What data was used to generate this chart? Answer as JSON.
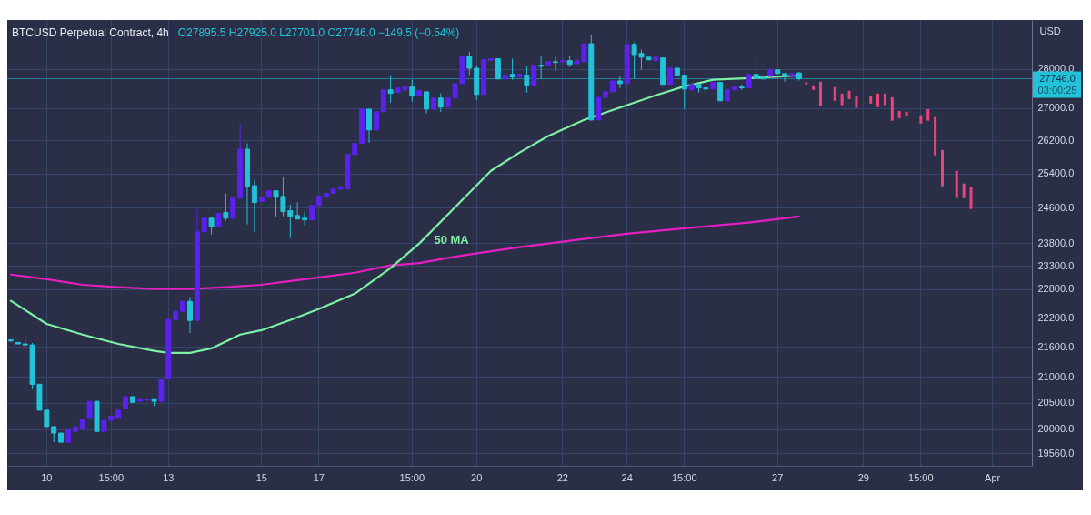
{
  "chart_data": {
    "type": "candlestick",
    "title": "BTCUSD Perpetual Contract, 4h",
    "subtitle": "O27895.5 H27925.0 L27701.0 C27746.0 −149.5 (−0.54%)",
    "ylabel": "USD",
    "log": true,
    "grid": true,
    "ylim": [
      19330,
      29310
    ],
    "yticks": [
      {
        "value": 28000,
        "label": "28000.0"
      },
      {
        "value": 27000,
        "label": "27000.0"
      },
      {
        "value": 26200,
        "label": "26200.0"
      },
      {
        "value": 25400,
        "label": "25400.0"
      },
      {
        "value": 24600,
        "label": "24600.0"
      },
      {
        "value": 23800,
        "label": "23800.0"
      },
      {
        "value": 23300,
        "label": "23300.0"
      },
      {
        "value": 22800,
        "label": "22800.0"
      },
      {
        "value": 22200,
        "label": "22200.0"
      },
      {
        "value": 21600,
        "label": "21600.0"
      },
      {
        "value": 21000,
        "label": "21000.0"
      },
      {
        "value": 20500,
        "label": "20500.0"
      },
      {
        "value": 20000,
        "label": "20000.0"
      },
      {
        "value": 19560,
        "label": "19560.0"
      }
    ],
    "categories": [
      null,
      null,
      null,
      null,
      null,
      "10",
      null,
      null,
      null,
      null,
      null,
      null,
      null,
      null,
      "15:00",
      null,
      null,
      null,
      null,
      null,
      null,
      null,
      "13",
      null,
      null,
      null,
      null,
      null,
      null,
      null,
      null,
      null,
      null,
      null,
      null,
      "15",
      null,
      null,
      null,
      null,
      null,
      null,
      null,
      "17",
      null,
      null,
      null,
      null,
      null,
      null,
      null,
      null,
      null,
      null,
      null,
      null,
      "15:00",
      null,
      null,
      null,
      null,
      null,
      null,
      null,
      null,
      "20",
      null,
      null,
      null,
      null,
      null,
      null,
      null,
      null,
      null,
      null,
      null,
      "22",
      null,
      null,
      null,
      null,
      null,
      null,
      null,
      null,
      "24",
      null,
      null,
      null,
      null,
      null,
      null,
      null,
      "15:00",
      null,
      null,
      null,
      null,
      null,
      null,
      null,
      null,
      null,
      null,
      null,
      null,
      "27",
      null,
      null,
      null,
      null,
      null,
      null,
      null,
      null,
      null,
      null,
      null,
      "29",
      null,
      null,
      null,
      null,
      null,
      null,
      null,
      "15:00",
      null,
      null,
      null,
      null,
      null,
      null,
      null,
      null,
      null,
      "Apr",
      null,
      null,
      null,
      null,
      null
    ],
    "ohlc": [
      [
        21740,
        21760,
        21700,
        21720
      ],
      [
        21690,
        21690,
        21660,
        21660
      ],
      [
        21660,
        21820,
        21550,
        21640
      ],
      [
        21640,
        21680,
        20780,
        20860
      ],
      [
        20860,
        20860,
        20360,
        20360
      ],
      [
        20360,
        20360,
        20050,
        20050
      ],
      [
        20050,
        20050,
        19760,
        19930
      ],
      [
        19930,
        19930,
        19760,
        19760
      ],
      [
        19760,
        20000,
        19760,
        20000
      ],
      [
        19960,
        20050,
        19960,
        20050
      ],
      [
        20010,
        20180,
        20010,
        20180
      ],
      [
        20220,
        20530,
        20220,
        20530
      ],
      [
        20530,
        20530,
        19960,
        19960
      ],
      [
        19960,
        20170,
        19960,
        20170
      ],
      [
        20170,
        20250,
        20170,
        20250
      ],
      [
        20220,
        20360,
        20220,
        20360
      ],
      [
        20390,
        20620,
        20390,
        20620
      ],
      [
        20620,
        20620,
        20510,
        20510
      ],
      [
        20530,
        20580,
        20530,
        20580
      ],
      [
        20550,
        20570,
        20550,
        20570
      ],
      [
        20580,
        20580,
        20440,
        20530
      ],
      [
        20530,
        20950,
        20530,
        20950
      ],
      [
        20970,
        22160,
        20970,
        22160
      ],
      [
        22160,
        22330,
        22160,
        22330
      ],
      [
        22330,
        22540,
        22330,
        22540
      ],
      [
        22540,
        22630,
        21880,
        22140
      ],
      [
        22140,
        24570,
        22140,
        24050
      ],
      [
        24050,
        24360,
        24050,
        24360
      ],
      [
        24360,
        24360,
        23990,
        24160
      ],
      [
        24160,
        24470,
        24160,
        24470
      ],
      [
        24490,
        24930,
        24300,
        24360
      ],
      [
        24360,
        24820,
        24360,
        24820
      ],
      [
        24820,
        26590,
        24820,
        25980
      ],
      [
        25980,
        26120,
        24220,
        25100
      ],
      [
        25110,
        25240,
        24040,
        24720
      ],
      [
        24740,
        24840,
        24740,
        24840
      ],
      [
        24840,
        24990,
        24840,
        24990
      ],
      [
        24990,
        24990,
        24400,
        24840
      ],
      [
        24860,
        25310,
        24400,
        24510
      ],
      [
        24530,
        24670,
        23910,
        24400
      ],
      [
        24420,
        24720,
        24340,
        24340
      ],
      [
        24360,
        24510,
        24200,
        24320
      ],
      [
        24320,
        24650,
        24320,
        24650
      ],
      [
        24650,
        24860,
        24650,
        24860
      ],
      [
        24840,
        24930,
        24840,
        24930
      ],
      [
        24930,
        25030,
        24930,
        25030
      ],
      [
        25030,
        25070,
        25030,
        25070
      ],
      [
        25030,
        25850,
        25030,
        25850
      ],
      [
        25850,
        26120,
        25850,
        26120
      ],
      [
        26120,
        26970,
        26120,
        26970
      ],
      [
        26970,
        26970,
        26140,
        26450
      ],
      [
        26450,
        26910,
        26450,
        26910
      ],
      [
        26900,
        27460,
        26900,
        27460
      ],
      [
        27460,
        27840,
        27130,
        27370
      ],
      [
        27390,
        27510,
        27390,
        27510
      ],
      [
        27460,
        27530,
        27460,
        27530
      ],
      [
        27530,
        27720,
        27160,
        27300
      ],
      [
        27300,
        27440,
        27300,
        27440
      ],
      [
        27410,
        27410,
        26860,
        26970
      ],
      [
        26970,
        27250,
        26970,
        27250
      ],
      [
        27250,
        27370,
        26900,
        27020
      ],
      [
        27020,
        27250,
        27020,
        27250
      ],
      [
        27250,
        27620,
        27250,
        27620
      ],
      [
        27620,
        28340,
        27620,
        28340
      ],
      [
        28340,
        28460,
        27840,
        28020
      ],
      [
        28020,
        28100,
        27200,
        27340
      ],
      [
        27340,
        28240,
        27340,
        28240
      ],
      [
        28220,
        28270,
        28220,
        28270
      ],
      [
        28270,
        28270,
        27740,
        27740
      ],
      [
        27740,
        27840,
        27740,
        27840
      ],
      [
        27860,
        28270,
        27720,
        27790
      ],
      [
        27790,
        27860,
        27790,
        27860
      ],
      [
        27840,
        28070,
        27390,
        27580
      ],
      [
        27580,
        28100,
        27580,
        28100
      ],
      [
        28100,
        28340,
        27740,
        28070
      ],
      [
        28100,
        28190,
        28100,
        28190
      ],
      [
        28190,
        28310,
        27950,
        28170
      ],
      [
        28190,
        28220,
        28190,
        28220
      ],
      [
        28220,
        28340,
        28050,
        28120
      ],
      [
        28140,
        28220,
        28140,
        28220
      ],
      [
        28190,
        28670,
        28190,
        28670
      ],
      [
        28670,
        28920,
        26680,
        26700
      ],
      [
        26700,
        27270,
        26700,
        27270
      ],
      [
        27270,
        27410,
        27270,
        27410
      ],
      [
        27410,
        27690,
        27410,
        27690
      ],
      [
        27690,
        27810,
        27500,
        27620
      ],
      [
        27620,
        28650,
        27620,
        28650
      ],
      [
        28650,
        28700,
        27740,
        28380
      ],
      [
        28410,
        28510,
        27980,
        28310
      ],
      [
        28310,
        28310,
        28240,
        28240
      ],
      [
        28220,
        28310,
        28220,
        28310
      ],
      [
        28290,
        28290,
        27600,
        27600
      ],
      [
        27600,
        28020,
        27600,
        28020
      ],
      [
        28020,
        28020,
        27840,
        27840
      ],
      [
        27840,
        27840,
        26970,
        27480
      ],
      [
        27460,
        27600,
        27460,
        27600
      ],
      [
        27600,
        27600,
        27390,
        27510
      ],
      [
        27510,
        27580,
        27340,
        27480
      ],
      [
        27480,
        27650,
        27480,
        27650
      ],
      [
        27650,
        27650,
        27180,
        27180
      ],
      [
        27180,
        27460,
        27180,
        27460
      ],
      [
        27460,
        27530,
        27460,
        27530
      ],
      [
        27530,
        27600,
        27460,
        27510
      ],
      [
        27510,
        27860,
        27510,
        27860
      ],
      [
        27860,
        28270,
        27760,
        27760
      ],
      [
        27790,
        27790,
        27740,
        27740
      ],
      [
        27810,
        27980,
        27810,
        27980
      ],
      [
        27980,
        27980,
        27880,
        27880
      ],
      [
        27880,
        27880,
        27670,
        27810
      ],
      [
        27810,
        27880,
        27810,
        27880
      ],
      [
        27895.5,
        27925,
        27701,
        27746
      ],
      null,
      null,
      null,
      null,
      null,
      null,
      null,
      null,
      null,
      null,
      null,
      null,
      null,
      null,
      null,
      null,
      null,
      null,
      null,
      null,
      null,
      null,
      null,
      null,
      null,
      null,
      null,
      null,
      null,
      null,
      null,
      null
    ],
    "colors": [
      "#22c3d9",
      "#22c3d9",
      "#22c3d9",
      "#22c3d9",
      "#22c3d9",
      "#22c3d9",
      "#22c3d9",
      "#22c3d9",
      "#5b22ee",
      "#5b22ee",
      "#5b22ee",
      "#5b22ee",
      "#22c3d9",
      "#5b22ee",
      "#5b22ee",
      "#5b22ee",
      "#5b22ee",
      "#22c3d9",
      "#5b22ee",
      "#5b22ee",
      "#22c3d9",
      "#5b22ee",
      "#5b22ee",
      "#5b22ee",
      "#5b22ee",
      "#22c3d9",
      "#5b22ee",
      "#5b22ee",
      "#22c3d9",
      "#5b22ee",
      "#22c3d9",
      "#5b22ee",
      "#5b22ee",
      "#22c3d9",
      "#22c3d9",
      "#5b22ee",
      "#5b22ee",
      "#22c3d9",
      "#22c3d9",
      "#22c3d9",
      "#22c3d9",
      "#22c3d9",
      "#5b22ee",
      "#5b22ee",
      "#5b22ee",
      "#5b22ee",
      "#5b22ee",
      "#5b22ee",
      "#5b22ee",
      "#5b22ee",
      "#22c3d9",
      "#5b22ee",
      "#5b22ee",
      "#22c3d9",
      "#5b22ee",
      "#5b22ee",
      "#22c3d9",
      "#5b22ee",
      "#22c3d9",
      "#5b22ee",
      "#22c3d9",
      "#5b22ee",
      "#5b22ee",
      "#5b22ee",
      "#22c3d9",
      "#22c3d9",
      "#5b22ee",
      "#5b22ee",
      "#22c3d9",
      "#5b22ee",
      "#22c3d9",
      "#5b22ee",
      "#22c3d9",
      "#5b22ee",
      "#22c3d9",
      "#5b22ee",
      "#22c3d9",
      "#5b22ee",
      "#22c3d9",
      "#5b22ee",
      "#5b22ee",
      "#22c3d9",
      "#5b22ee",
      "#5b22ee",
      "#5b22ee",
      "#22c3d9",
      "#5b22ee",
      "#22c3d9",
      "#22c3d9",
      "#22c3d9",
      "#5b22ee",
      "#22c3d9",
      "#5b22ee",
      "#22c3d9",
      "#22c3d9",
      "#5b22ee",
      "#22c3d9",
      "#22c3d9",
      "#5b22ee",
      "#22c3d9",
      "#5b22ee",
      "#5b22ee",
      "#22c3d9",
      "#5b22ee",
      "#22c3d9",
      "#22c3d9",
      "#5b22ee",
      "#22c3d9",
      "#22c3d9",
      "#5b22ee",
      "#22c3d9",
      null,
      null,
      null,
      null,
      null,
      null,
      null,
      null,
      null,
      null,
      null,
      null,
      null,
      null,
      null,
      null,
      null,
      null,
      null,
      null,
      null,
      null,
      null,
      null,
      null,
      null,
      null,
      null,
      null,
      null,
      null,
      null
    ],
    "series": [
      {
        "type": "line",
        "color": "#e61fc0",
        "values": [
          23110,
          null,
          null,
          null,
          null,
          23010,
          null,
          null,
          null,
          null,
          22890,
          null,
          null,
          null,
          null,
          22840,
          null,
          null,
          null,
          null,
          22800,
          null,
          null,
          null,
          null,
          22800,
          null,
          null,
          null,
          null,
          22840,
          null,
          null,
          null,
          null,
          22890,
          null,
          null,
          null,
          22970,
          null,
          null,
          null,
          23050,
          null,
          null,
          null,
          null,
          23150,
          null,
          null,
          null,
          null,
          23310,
          null,
          null,
          null,
          23360,
          null,
          null,
          null,
          null,
          23500,
          null,
          null,
          null,
          null,
          23620,
          null,
          null,
          null,
          23710,
          null,
          null,
          null,
          23790,
          null,
          null,
          null,
          null,
          23890,
          null,
          null,
          null,
          null,
          null,
          24010,
          null,
          null,
          null,
          24070,
          null,
          null,
          null,
          24130,
          null,
          null,
          null,
          24190,
          null,
          null,
          null,
          null,
          24260,
          null,
          null,
          null,
          null,
          null,
          null,
          24400,
          null,
          null,
          null,
          null,
          null,
          null,
          null,
          null,
          null,
          null,
          null,
          null,
          null,
          null,
          null,
          null,
          null,
          null,
          null,
          null,
          null,
          null,
          null,
          null,
          null,
          null,
          null,
          null,
          null,
          null,
          null,
          null
        ]
      },
      {
        "type": "line",
        "name": "50 MA",
        "color": "#7cf0a4",
        "values": [
          22550,
          null,
          null,
          null,
          null,
          22070,
          null,
          null,
          null,
          null,
          21850,
          null,
          null,
          null,
          null,
          21660,
          null,
          null,
          null,
          null,
          21520,
          null,
          21480,
          null,
          null,
          21480,
          null,
          null,
          21570,
          null,
          null,
          null,
          21850,
          null,
          null,
          21940,
          null,
          null,
          null,
          22150,
          null,
          null,
          null,
          22380,
          null,
          null,
          null,
          null,
          22700,
          null,
          null,
          null,
          null,
          23250,
          null,
          null,
          null,
          23790,
          null,
          null,
          null,
          null,
          24610,
          null,
          null,
          null,
          null,
          25460,
          null,
          null,
          null,
          25900,
          null,
          null,
          null,
          26300,
          null,
          null,
          null,
          null,
          26700,
          null,
          null,
          null,
          null,
          null,
          27070,
          null,
          null,
          null,
          27320,
          null,
          null,
          null,
          27550,
          null,
          null,
          null,
          27720,
          null,
          null,
          null,
          null,
          27760,
          null,
          null,
          null,
          null,
          null,
          null,
          27830,
          null,
          null,
          null,
          null,
          null,
          null,
          null,
          null,
          null,
          null,
          null,
          null,
          null,
          null,
          null,
          null,
          null,
          null,
          null,
          null,
          null,
          null,
          null,
          null,
          null,
          null,
          null,
          null,
          null,
          null,
          null,
          null
        ]
      },
      {
        "type": "bar",
        "color": "#e8467a",
        "base": [
          null,
          null,
          null,
          null,
          null,
          null,
          null,
          null,
          null,
          null,
          null,
          null,
          null,
          null,
          null,
          null,
          null,
          null,
          null,
          null,
          null,
          null,
          null,
          null,
          null,
          null,
          null,
          null,
          null,
          null,
          null,
          null,
          null,
          null,
          null,
          null,
          null,
          null,
          null,
          null,
          null,
          null,
          null,
          null,
          null,
          null,
          null,
          null,
          null,
          null,
          null,
          null,
          null,
          null,
          null,
          null,
          null,
          null,
          null,
          null,
          null,
          null,
          null,
          null,
          null,
          null,
          null,
          null,
          null,
          null,
          null,
          null,
          null,
          null,
          null,
          null,
          null,
          null,
          null,
          null,
          null,
          null,
          null,
          null,
          null,
          null,
          null,
          null,
          null,
          null,
          null,
          null,
          null,
          null,
          null,
          null,
          null,
          null,
          null,
          null,
          null,
          null,
          null,
          null,
          null,
          null,
          null,
          null,
          null,
          null,
          null,
          27600,
          27460,
          27040,
          null,
          27180,
          27070,
          27225,
          27000,
          null,
          27110,
          27020,
          27070,
          26680,
          26745,
          26790,
          null,
          26610,
          26680,
          25830,
          25095,
          null,
          24820,
          24820,
          24570,
          null,
          null,
          null,
          null,
          null,
          null,
          null,
          null
        ],
        "values": [
          null,
          null,
          null,
          null,
          null,
          null,
          null,
          null,
          null,
          null,
          null,
          null,
          null,
          null,
          null,
          null,
          null,
          null,
          null,
          null,
          null,
          null,
          null,
          null,
          null,
          null,
          null,
          null,
          null,
          null,
          null,
          null,
          null,
          null,
          null,
          null,
          null,
          null,
          null,
          null,
          null,
          null,
          null,
          null,
          null,
          null,
          null,
          null,
          null,
          null,
          null,
          null,
          null,
          null,
          null,
          null,
          null,
          null,
          null,
          null,
          null,
          null,
          null,
          null,
          null,
          null,
          null,
          null,
          null,
          null,
          null,
          null,
          null,
          null,
          null,
          null,
          null,
          null,
          null,
          null,
          null,
          null,
          null,
          null,
          null,
          null,
          null,
          null,
          null,
          null,
          null,
          null,
          null,
          null,
          null,
          null,
          null,
          null,
          null,
          null,
          null,
          null,
          null,
          null,
          null,
          null,
          null,
          null,
          null,
          null,
          null,
          50,
          115,
          630,
          null,
          350,
          295,
          210,
          295,
          null,
          185,
          345,
          295,
          590,
          180,
          115,
          null,
          205,
          290,
          940,
          865,
          null,
          640,
          340,
          500,
          null,
          null,
          null,
          null,
          null,
          null,
          null,
          null
        ]
      }
    ],
    "ref_lines": [
      {
        "axis": "y",
        "value": 27746,
        "label": "27746.0",
        "color": "#22c3d9"
      }
    ],
    "annotations": [
      "03:00:25"
    ]
  }
}
